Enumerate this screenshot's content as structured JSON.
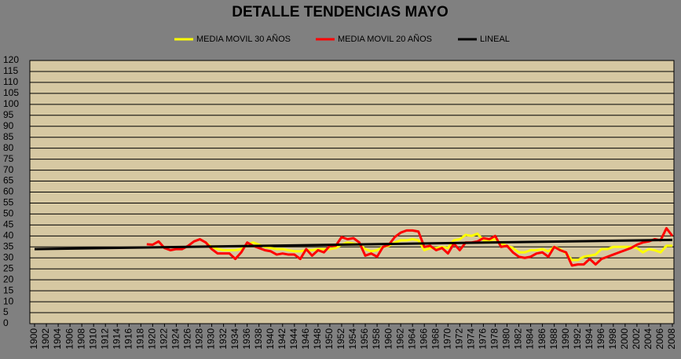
{
  "chart_data": {
    "type": "line",
    "title": "DETALLE TENDENCIAS MAYO",
    "x": [
      1900,
      1901,
      1902,
      1903,
      1904,
      1905,
      1906,
      1907,
      1908,
      1909,
      1910,
      1911,
      1912,
      1913,
      1914,
      1915,
      1916,
      1917,
      1918,
      1919,
      1920,
      1921,
      1922,
      1923,
      1924,
      1925,
      1926,
      1927,
      1928,
      1929,
      1930,
      1931,
      1932,
      1933,
      1934,
      1935,
      1936,
      1937,
      1938,
      1939,
      1940,
      1941,
      1942,
      1943,
      1944,
      1945,
      1946,
      1947,
      1948,
      1949,
      1950,
      1951,
      1952,
      1953,
      1954,
      1955,
      1956,
      1957,
      1958,
      1959,
      1960,
      1961,
      1962,
      1963,
      1964,
      1965,
      1966,
      1967,
      1968,
      1969,
      1970,
      1971,
      1972,
      1973,
      1974,
      1975,
      1976,
      1977,
      1978,
      1979,
      1980,
      1981,
      1982,
      1983,
      1984,
      1985,
      1986,
      1987,
      1988,
      1989,
      1990,
      1991,
      1992,
      1993,
      1994,
      1995,
      1996,
      1997,
      1998,
      1999,
      2000,
      2001,
      2002,
      2003,
      2004,
      2005,
      2006,
      2007,
      2008
    ],
    "xlim": [
      1900,
      2008
    ],
    "xticks": [
      1900,
      1902,
      1904,
      1906,
      1908,
      1910,
      1912,
      1914,
      1916,
      1918,
      1920,
      1922,
      1924,
      1926,
      1928,
      1930,
      1932,
      1934,
      1936,
      1938,
      1940,
      1942,
      1944,
      1946,
      1948,
      1950,
      1952,
      1954,
      1956,
      1958,
      1960,
      1962,
      1964,
      1966,
      1968,
      1970,
      1972,
      1974,
      1976,
      1978,
      1980,
      1982,
      1984,
      1986,
      1988,
      1990,
      1992,
      1994,
      1996,
      1998,
      2000,
      2002,
      2004,
      2006,
      2008
    ],
    "ylim": [
      0,
      120
    ],
    "yticks": [
      0,
      5,
      10,
      15,
      20,
      25,
      30,
      35,
      40,
      45,
      50,
      55,
      60,
      65,
      70,
      75,
      80,
      85,
      90,
      95,
      100,
      105,
      110,
      115,
      120
    ],
    "grid": true,
    "series": [
      {
        "name": "MEDIA MOVIL 30 AÑOS",
        "color": "#ffff00",
        "values": [
          null,
          null,
          null,
          null,
          null,
          null,
          null,
          null,
          null,
          null,
          null,
          null,
          null,
          null,
          null,
          null,
          null,
          null,
          null,
          null,
          null,
          null,
          null,
          null,
          null,
          null,
          null,
          null,
          null,
          37,
          35,
          34,
          33.5,
          33.5,
          33.5,
          34,
          36,
          37,
          36,
          35,
          34.5,
          34,
          34,
          33.5,
          33,
          33,
          33.5,
          33.5,
          34,
          34,
          34,
          34.5,
          36,
          37,
          36.5,
          36,
          34,
          33,
          33.5,
          35,
          35.5,
          37,
          38,
          38,
          38.5,
          38,
          33.5,
          34.5,
          34.5,
          35,
          34.5,
          38,
          38.5,
          40.5,
          40,
          41,
          38,
          38,
          38.5,
          36.5,
          35.5,
          34.5,
          32.5,
          32.5,
          33.5,
          33.5,
          34,
          33,
          35,
          34,
          32,
          29,
          29,
          30.5,
          31,
          31.5,
          34,
          34,
          35,
          35,
          35,
          35,
          34.5,
          32.5,
          34,
          33.5,
          32.5,
          35.5,
          35.5
        ]
      },
      {
        "name": "MEDIA MOVIL 20 AÑOS",
        "color": "#ff0000",
        "values": [
          null,
          null,
          null,
          null,
          null,
          null,
          null,
          null,
          null,
          null,
          null,
          null,
          null,
          null,
          null,
          null,
          null,
          null,
          null,
          36.2,
          36,
          37.5,
          34.5,
          33.5,
          34,
          34,
          35.5,
          37.5,
          38.5,
          37,
          34,
          32,
          32,
          32,
          29.5,
          32.5,
          37,
          35.5,
          34.5,
          33.5,
          33,
          31.5,
          32,
          31.5,
          31.5,
          29.5,
          34,
          31,
          33.5,
          32.5,
          35.5,
          35.5,
          39.5,
          38.5,
          39,
          37,
          31,
          32,
          30.5,
          35,
          36,
          39.5,
          41.5,
          42.5,
          42.5,
          42,
          35,
          35.5,
          33.5,
          34.5,
          32,
          36.5,
          33.5,
          37,
          37,
          37.5,
          39,
          38.5,
          40,
          35,
          35.5,
          32.5,
          30.5,
          30,
          30.5,
          32,
          32.5,
          30.5,
          35,
          33.5,
          32.5,
          26.5,
          27,
          27,
          29.5,
          27,
          29.5,
          30.5,
          31.5,
          32.5,
          33.5,
          34.5,
          36,
          37,
          37.5,
          38.5,
          38,
          43.5,
          40
        ]
      },
      {
        "name": "LINEAL",
        "color": "#000000",
        "x": [
          1900,
          2008
        ],
        "values": [
          34,
          38.2
        ]
      }
    ]
  }
}
